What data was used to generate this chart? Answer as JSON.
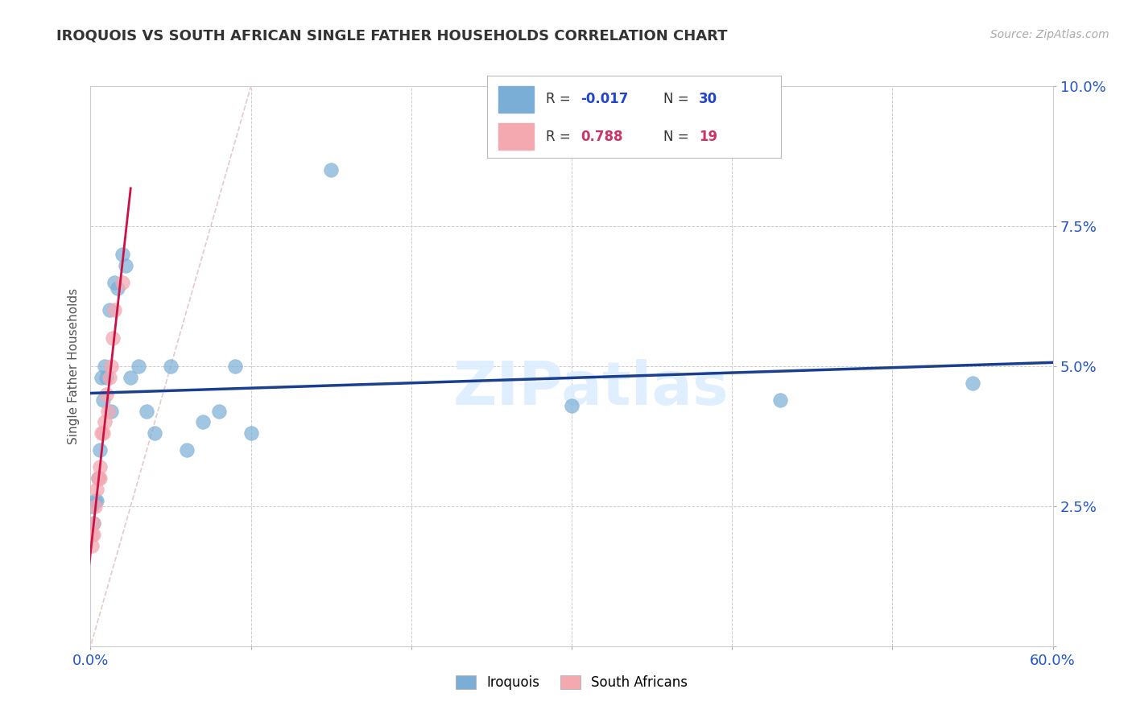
{
  "title": "IROQUOIS VS SOUTH AFRICAN SINGLE FATHER HOUSEHOLDS CORRELATION CHART",
  "source": "Source: ZipAtlas.com",
  "ylabel": "Single Father Households",
  "xlim": [
    0.0,
    0.6
  ],
  "ylim": [
    0.0,
    0.1
  ],
  "iroquois_x": [
    0.001,
    0.002,
    0.003,
    0.004,
    0.005,
    0.006,
    0.007,
    0.008,
    0.009,
    0.01,
    0.012,
    0.013,
    0.015,
    0.017,
    0.02,
    0.022,
    0.025,
    0.03,
    0.035,
    0.04,
    0.05,
    0.06,
    0.07,
    0.08,
    0.09,
    0.1,
    0.15,
    0.3,
    0.43,
    0.55
  ],
  "iroquois_y": [
    0.025,
    0.022,
    0.026,
    0.026,
    0.03,
    0.035,
    0.048,
    0.044,
    0.05,
    0.048,
    0.06,
    0.042,
    0.065,
    0.064,
    0.07,
    0.068,
    0.048,
    0.05,
    0.042,
    0.038,
    0.05,
    0.035,
    0.04,
    0.042,
    0.05,
    0.038,
    0.085,
    0.043,
    0.044,
    0.047
  ],
  "south_african_x": [
    0.001,
    0.001,
    0.002,
    0.002,
    0.003,
    0.004,
    0.005,
    0.006,
    0.006,
    0.007,
    0.008,
    0.009,
    0.01,
    0.011,
    0.012,
    0.013,
    0.014,
    0.015,
    0.02
  ],
  "south_african_y": [
    0.018,
    0.02,
    0.022,
    0.02,
    0.025,
    0.028,
    0.03,
    0.032,
    0.03,
    0.038,
    0.038,
    0.04,
    0.045,
    0.042,
    0.048,
    0.05,
    0.055,
    0.06,
    0.065
  ],
  "iroquois_color": "#7aaed6",
  "south_african_color": "#f4a8b0",
  "regression_line_blue_color": "#1a3f8f",
  "regression_line_pink_color": "#cc1144",
  "diagonal_color": "#e8c8c8",
  "background_color": "#ffffff",
  "grid_color": "#cccccc",
  "title_color": "#333333",
  "axis_color": "#2255cc",
  "legend_r_color_blue": "#2244cc",
  "legend_r_color_pink": "#cc3366",
  "watermark_color": "#ddeeff"
}
